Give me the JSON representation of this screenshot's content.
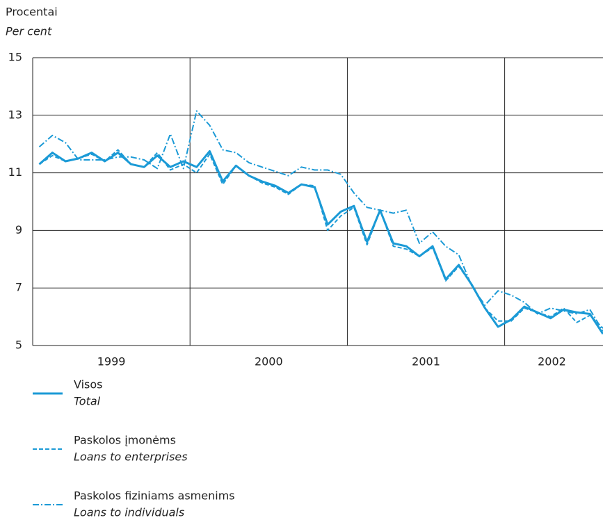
{
  "chart_data": {
    "type": "line",
    "y_label": "Procentai",
    "y_label_en": "Per cent",
    "x": [
      1999.042,
      1999.125,
      1999.208,
      1999.292,
      1999.375,
      1999.458,
      1999.542,
      1999.625,
      1999.708,
      1999.792,
      1999.875,
      1999.958,
      2000.042,
      2000.125,
      2000.208,
      2000.292,
      2000.375,
      2000.458,
      2000.542,
      2000.625,
      2000.708,
      2000.792,
      2000.875,
      2000.958,
      2001.042,
      2001.125,
      2001.208,
      2001.292,
      2001.375,
      2001.458,
      2001.542,
      2001.625,
      2001.708,
      2001.792,
      2001.875,
      2001.958,
      2002.042,
      2002.125,
      2002.208,
      2002.292,
      2002.375,
      2002.458,
      2002.542,
      2002.625
    ],
    "xlim": [
      1999,
      2002.625
    ],
    "xticks": [
      2000,
      2001,
      2002
    ],
    "x_labels": [
      {
        "value": 1999.5,
        "label": "1999"
      },
      {
        "value": 2000.5,
        "label": "2000"
      },
      {
        "value": 2001.5,
        "label": "2001"
      },
      {
        "value": 2002.3,
        "label": "2002"
      }
    ],
    "ylim": [
      5,
      15
    ],
    "yticks": [
      5,
      7,
      9,
      11,
      13,
      15
    ],
    "grid": true,
    "series": [
      {
        "name": "Visos",
        "name_en": "Total",
        "color": "#1b9ad6",
        "style": "solid",
        "values": [
          11.3,
          11.7,
          11.4,
          11.5,
          11.7,
          11.4,
          11.7,
          11.3,
          11.2,
          11.6,
          11.2,
          11.4,
          11.2,
          11.75,
          10.7,
          11.25,
          10.9,
          10.7,
          10.55,
          10.3,
          10.6,
          10.5,
          9.2,
          9.65,
          9.85,
          8.6,
          9.7,
          8.55,
          8.45,
          8.1,
          8.45,
          7.3,
          7.8,
          7.1,
          6.3,
          5.65,
          5.9,
          6.35,
          6.15,
          5.95,
          6.25,
          6.15,
          6.1,
          5.4
        ]
      },
      {
        "name": "Paskolos įmonėms",
        "name_en": "Loans to enterprises",
        "color": "#1b9ad6",
        "style": "dashed",
        "values": [
          11.3,
          11.6,
          11.4,
          11.5,
          11.65,
          11.4,
          11.8,
          11.3,
          11.2,
          11.7,
          11.1,
          11.3,
          11.0,
          11.65,
          10.6,
          11.25,
          10.9,
          10.65,
          10.5,
          10.25,
          10.6,
          10.55,
          9.0,
          9.5,
          9.8,
          8.5,
          9.7,
          8.45,
          8.35,
          8.1,
          8.4,
          7.25,
          7.75,
          7.1,
          6.3,
          5.85,
          5.85,
          6.3,
          6.15,
          6.0,
          6.3,
          5.8,
          6.05,
          5.6
        ]
      },
      {
        "name": "Paskolos fiziniams asmenims",
        "name_en": "Loans to individuals",
        "color": "#1b9ad6",
        "style": "dashdot",
        "values": [
          11.9,
          12.3,
          12.05,
          11.45,
          11.45,
          11.45,
          11.55,
          11.55,
          11.45,
          11.15,
          12.35,
          11.15,
          13.15,
          12.65,
          11.8,
          11.7,
          11.35,
          11.2,
          11.05,
          10.9,
          11.2,
          11.1,
          11.1,
          10.95,
          10.3,
          9.8,
          9.7,
          9.6,
          9.7,
          8.55,
          8.95,
          8.45,
          8.15,
          7.05,
          6.4,
          6.9,
          6.75,
          6.5,
          6.1,
          6.3,
          6.2,
          6.1,
          6.25,
          5.5
        ]
      }
    ]
  }
}
